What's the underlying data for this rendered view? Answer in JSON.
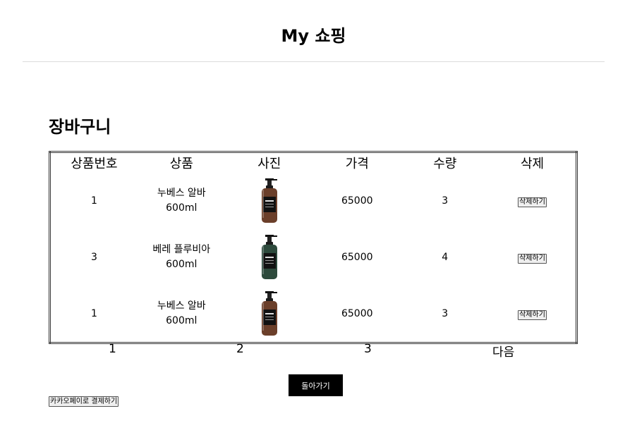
{
  "header": {
    "title": "My 쇼핑"
  },
  "cart": {
    "heading": "장바구니",
    "columns": [
      "상품번호",
      "상품",
      "사진",
      "가격",
      "수량",
      "삭제"
    ],
    "rows": [
      {
        "id": "1",
        "name_line1": "누베스 알바",
        "name_line2": "600ml",
        "price": "65000",
        "quantity": "3",
        "delete_label": "삭제하기",
        "bottle_color": "#6b3f2a"
      },
      {
        "id": "3",
        "name_line1": "베레 플루비아",
        "name_line2": "600ml",
        "price": "65000",
        "quantity": "4",
        "delete_label": "삭제하기",
        "bottle_color": "#2d4a3c"
      },
      {
        "id": "1",
        "name_line1": "누베스 알바",
        "name_line2": "600ml",
        "price": "65000",
        "quantity": "3",
        "delete_label": "삭제하기",
        "bottle_color": "#6b3f2a"
      }
    ]
  },
  "pagination": {
    "pages": [
      "1",
      "2",
      "3"
    ],
    "next": "다음"
  },
  "actions": {
    "back": "돌아가기",
    "kakao_pay": "카카오페이로 결제하기"
  }
}
